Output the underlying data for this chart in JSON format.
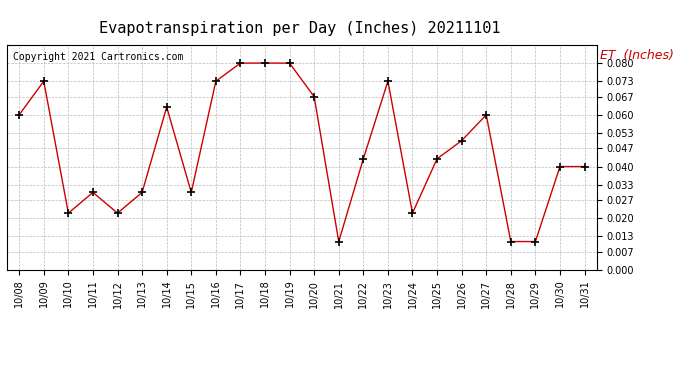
{
  "title": "Evapotranspiration per Day (Inches) 20211101",
  "copyright": "Copyright 2021 Cartronics.com",
  "legend_label": "ET  (Inches)",
  "x_labels": [
    "10/08",
    "10/09",
    "10/10",
    "10/11",
    "10/12",
    "10/13",
    "10/14",
    "10/15",
    "10/16",
    "10/17",
    "10/18",
    "10/19",
    "10/20",
    "10/21",
    "10/22",
    "10/23",
    "10/24",
    "10/25",
    "10/26",
    "10/27",
    "10/28",
    "10/29",
    "10/30",
    "10/31"
  ],
  "y_values": [
    0.06,
    0.073,
    0.022,
    0.03,
    0.022,
    0.03,
    0.063,
    0.03,
    0.073,
    0.08,
    0.08,
    0.08,
    0.067,
    0.011,
    0.043,
    0.073,
    0.022,
    0.043,
    0.05,
    0.06,
    0.011,
    0.011,
    0.04,
    0.04
  ],
  "line_color": "#cc0000",
  "marker": "+",
  "marker_size": 6,
  "marker_color": "#000000",
  "ylim": [
    0.0,
    0.087
  ],
  "yticks": [
    0.0,
    0.007,
    0.013,
    0.02,
    0.027,
    0.033,
    0.04,
    0.047,
    0.053,
    0.06,
    0.067,
    0.073,
    0.08
  ],
  "grid_color": "#bbbbbb",
  "bg_color": "#ffffff",
  "title_fontsize": 11,
  "copyright_fontsize": 7,
  "legend_fontsize": 9,
  "tick_fontsize": 7,
  "border_color": "#000000"
}
